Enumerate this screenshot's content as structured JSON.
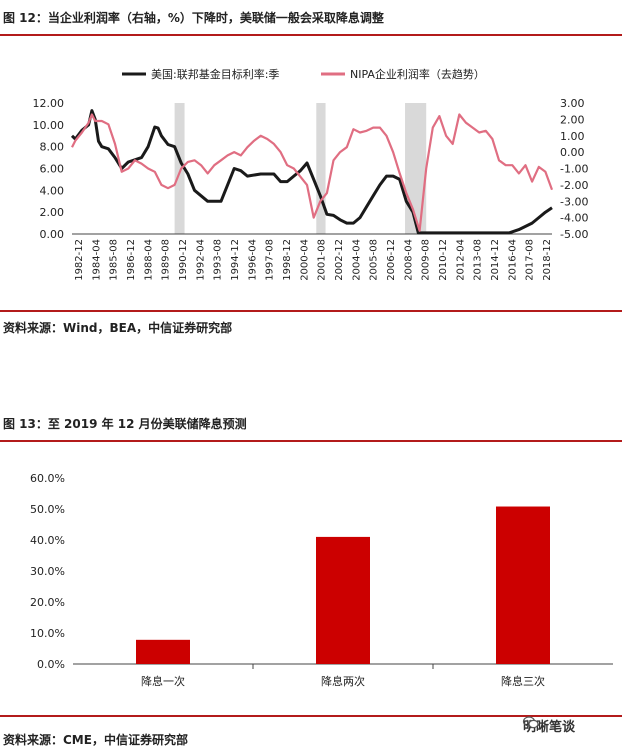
{
  "figure1": {
    "title": "图 12：当企业利润率（右轴，%）下降时，美联储一般会采取降息调整",
    "source": "资料来源：Wind，BEA，中信证券研究部"
  },
  "figure2": {
    "title": "图 13：至 2019 年 12 月份美联储降息预测",
    "source": "资料来源：CME，中信证券研究部"
  },
  "watermark": {
    "icon": "wechat-icon",
    "text": "明晰笔谈"
  },
  "colors": {
    "rule": "#b31b1b",
    "black_series": "#1a1a1a",
    "pink_series": "#e06e82",
    "bar": "#cc0000",
    "recession": "#d9d9d9"
  },
  "chart_data": [
    {
      "type": "line",
      "legend": [
        "美国:联邦基金目标利率:季",
        "NIPA企业利润率（去趋势）"
      ],
      "legend_position": "top-center",
      "grid": false,
      "xlim": [
        1982.75,
        2019.0
      ],
      "x_tick_labels": [
        "1982-12",
        "1984-04",
        "1985-08",
        "1986-12",
        "1988-04",
        "1989-08",
        "1990-12",
        "1992-04",
        "1993-08",
        "1994-12",
        "1996-04",
        "1997-08",
        "1998-12",
        "2000-04",
        "2001-08",
        "2002-12",
        "2004-04",
        "2005-08",
        "2006-12",
        "2008-04",
        "2009-08",
        "2010-12",
        "2012-04",
        "2013-08",
        "2014-12",
        "2016-04",
        "2017-08",
        "2018-12"
      ],
      "y_left": {
        "ylim": [
          0,
          12
        ],
        "tick_labels": [
          "0.00",
          "2.00",
          "4.00",
          "6.00",
          "8.00",
          "10.00",
          "12.00"
        ]
      },
      "y_right": {
        "ylim": [
          -5,
          3
        ],
        "tick_labels": [
          "-5.00",
          "-4.00",
          "-3.00",
          "-2.00",
          "-1.00",
          "0.00",
          "1.00",
          "2.00",
          "3.00"
        ]
      },
      "recession_shading": [
        [
          1990.5,
          1991.25
        ],
        [
          2001.2,
          2001.9
        ],
        [
          2007.9,
          2009.5
        ]
      ],
      "series": [
        {
          "name": "美国:联邦基金目标利率:季",
          "axis": "left",
          "x": [
            1982.75,
            1983.0,
            1983.5,
            1984.0,
            1984.25,
            1984.5,
            1984.75,
            1985.0,
            1985.5,
            1986.0,
            1986.5,
            1987.0,
            1987.5,
            1988.0,
            1988.5,
            1989.0,
            1989.25,
            1989.5,
            1990.0,
            1990.5,
            1991.0,
            1991.5,
            1992.0,
            1992.5,
            1993.0,
            1994.0,
            1994.5,
            1995.0,
            1995.5,
            1996.0,
            1997.0,
            1997.5,
            1998.0,
            1998.5,
            1999.0,
            1999.5,
            2000.0,
            2000.5,
            2001.0,
            2001.5,
            2002.0,
            2002.5,
            2003.0,
            2003.5,
            2004.0,
            2004.5,
            2005.0,
            2005.5,
            2006.0,
            2006.5,
            2007.0,
            2007.5,
            2008.0,
            2008.5,
            2008.9,
            2009.5,
            2010.0,
            2015.75,
            2016.5,
            2017.0,
            2017.5,
            2018.0,
            2018.5,
            2019.0
          ],
          "values": [
            9.0,
            8.7,
            9.5,
            10.0,
            11.3,
            10.5,
            8.5,
            8.0,
            7.8,
            7.0,
            6.0,
            6.6,
            6.8,
            7.0,
            8.0,
            9.8,
            9.7,
            9.0,
            8.2,
            8.0,
            6.5,
            5.5,
            4.0,
            3.5,
            3.0,
            3.0,
            4.5,
            6.0,
            5.8,
            5.3,
            5.5,
            5.5,
            5.5,
            4.8,
            4.8,
            5.3,
            5.8,
            6.5,
            5.0,
            3.5,
            1.8,
            1.7,
            1.3,
            1.0,
            1.0,
            1.5,
            2.5,
            3.5,
            4.5,
            5.3,
            5.3,
            5.0,
            3.0,
            2.0,
            0.1,
            0.1,
            0.1,
            0.1,
            0.4,
            0.7,
            1.0,
            1.5,
            2.0,
            2.4
          ]
        },
        {
          "name": "NIPA企业利润率（去趋势）",
          "axis": "right",
          "x": [
            1982.75,
            1983.0,
            1983.5,
            1984.0,
            1984.25,
            1984.5,
            1985.0,
            1985.5,
            1986.0,
            1986.5,
            1987.0,
            1987.5,
            1988.0,
            1988.5,
            1989.0,
            1989.5,
            1990.0,
            1990.5,
            1991.0,
            1991.5,
            1992.0,
            1992.5,
            1993.0,
            1993.5,
            1994.0,
            1994.5,
            1995.0,
            1995.5,
            1996.0,
            1996.5,
            1997.0,
            1997.5,
            1998.0,
            1998.5,
            1999.0,
            1999.5,
            2000.0,
            2000.5,
            2001.0,
            2001.5,
            2002.0,
            2002.5,
            2003.0,
            2003.5,
            2004.0,
            2004.5,
            2005.0,
            2005.5,
            2006.0,
            2006.5,
            2007.0,
            2007.5,
            2008.0,
            2008.5,
            2009.0,
            2009.5,
            2010.0,
            2010.5,
            2011.0,
            2011.5,
            2012.0,
            2012.5,
            2013.0,
            2013.5,
            2014.0,
            2014.5,
            2015.0,
            2015.5,
            2016.0,
            2016.5,
            2017.0,
            2017.5,
            2018.0,
            2018.5,
            2019.0
          ],
          "values": [
            0.3,
            0.7,
            1.2,
            1.8,
            2.3,
            1.9,
            1.9,
            1.7,
            0.5,
            -1.2,
            -1.0,
            -0.5,
            -0.7,
            -1.0,
            -1.2,
            -2.0,
            -2.2,
            -2.0,
            -1.0,
            -0.6,
            -0.5,
            -0.8,
            -1.3,
            -0.8,
            -0.5,
            -0.2,
            0.0,
            -0.2,
            0.3,
            0.7,
            1.0,
            0.8,
            0.5,
            0.0,
            -0.8,
            -1.0,
            -1.5,
            -2.0,
            -4.0,
            -3.0,
            -2.5,
            -0.5,
            0.0,
            0.3,
            1.4,
            1.2,
            1.3,
            1.5,
            1.5,
            1.0,
            0.0,
            -1.3,
            -2.5,
            -3.5,
            -4.8,
            -1.0,
            1.5,
            2.2,
            1.0,
            0.5,
            2.3,
            1.8,
            1.5,
            1.2,
            1.3,
            0.8,
            -0.5,
            -0.8,
            -0.8,
            -1.3,
            -0.8,
            -1.8,
            -0.9,
            -1.2,
            -2.3
          ]
        }
      ]
    },
    {
      "type": "bar",
      "categories": [
        "降息一次",
        "降息两次",
        "降息三次"
      ],
      "values": [
        7.8,
        41.0,
        50.8
      ],
      "ylim": [
        0,
        60
      ],
      "y_tick_labels": [
        "0.0%",
        "10.0%",
        "20.0%",
        "30.0%",
        "40.0%",
        "50.0%",
        "60.0%"
      ],
      "grid": false
    }
  ]
}
